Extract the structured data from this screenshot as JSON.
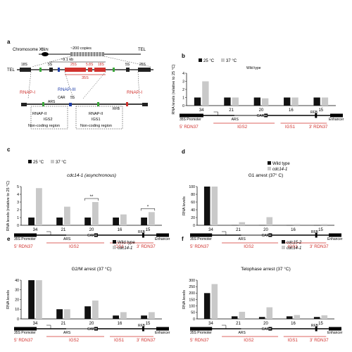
{
  "colors": {
    "dark": "#111111",
    "light": "#c9c9c9",
    "red": "#d0312d",
    "blue": "#1f3ea8",
    "green": "#3aa83a"
  },
  "panel_a": {
    "label": "a",
    "chromosome": "Chromosome XII",
    "cen": "CEN",
    "tel_right": "TEL",
    "copies": "~200 copies",
    "unit_size": "~9.1 kb",
    "tel_left": "TEL",
    "s18": "18S",
    "s5": "5S",
    "s25": "25S",
    "s58": "5.8S",
    "s18b": "18S",
    "s5b": "5S",
    "s25b": "25S",
    "s35": "35S",
    "rnap1_left": "RNAP-I",
    "rnap3": "RNAP-III",
    "rnap1_right": "RNAP-I",
    "ars": "ARS",
    "car": "CAR",
    "s5c": "5S",
    "rfb": "RFB",
    "rnap2_left": "RNAP-II",
    "rnap2_right": "RNAP-II",
    "igs2": "IGS2",
    "igs1": "IGS1",
    "ncr_left": "Non-coding region",
    "ncr_right": "Non-coding region"
  },
  "chart_data": [
    {
      "panel": "b",
      "type": "bar",
      "title": "",
      "ylabel": "RNA levels (relative to 25 °C)",
      "ylim": [
        0,
        4
      ],
      "yticks": [
        "0",
        "1",
        "2",
        "3",
        "4"
      ],
      "categories": [
        "34",
        "21",
        "20",
        "16",
        "15"
      ],
      "series": [
        {
          "name": "25 °C",
          "values": [
            1,
            1,
            1,
            1,
            1
          ]
        },
        {
          "name": "37 °C",
          "values": [
            3,
            1,
            0.9,
            1,
            1
          ]
        }
      ],
      "annotation": "Wild type"
    },
    {
      "panel": "c",
      "type": "bar",
      "title": "cdc14-1 (asynchronous)",
      "ylabel": "RNA levels (relative to 25 °C)",
      "ylim": [
        0,
        5
      ],
      "yticks": [
        "0",
        "1",
        "2",
        "3",
        "4",
        "5"
      ],
      "categories": [
        "34",
        "21",
        "20",
        "16",
        "15"
      ],
      "series": [
        {
          "name": "25 °C",
          "values": [
            1,
            1,
            1,
            1,
            1
          ]
        },
        {
          "name": "37 °C",
          "values": [
            4.8,
            2.4,
            3,
            1.4,
            1.7
          ]
        }
      ],
      "significance": [
        "**",
        "*"
      ]
    },
    {
      "panel": "d",
      "type": "bar",
      "title": "G1 arrest (37° C)",
      "ylabel": "RNA levels",
      "ylim": [
        0,
        100
      ],
      "yticks": [
        "0",
        "20",
        "40",
        "60",
        "80",
        "100"
      ],
      "categories": [
        "34",
        "21",
        "20",
        "16",
        "15"
      ],
      "series": [
        {
          "name": "Wild type",
          "values": [
            100,
            0.5,
            0.5,
            0.3,
            0.3
          ]
        },
        {
          "name": "cdc14-1",
          "values": [
            100,
            8,
            21,
            3,
            3
          ]
        }
      ]
    },
    {
      "panel": "e",
      "type": "bar",
      "title": "G2/M arrest (37 °C)",
      "ylabel": "RNA levels",
      "ylim": [
        0,
        40
      ],
      "yticks": [
        "0",
        "10",
        "20",
        "30",
        "40"
      ],
      "categories": [
        "34",
        "21",
        "20",
        "16",
        "15"
      ],
      "series": [
        {
          "name": "Wild type",
          "values": [
            40,
            10,
            13,
            3.5,
            3.5
          ]
        },
        {
          "name": "cdc14-1",
          "values": [
            40,
            10,
            19,
            7,
            7
          ]
        }
      ]
    },
    {
      "panel": "f",
      "type": "bar",
      "title": "Telophase arrest (37 °C)",
      "ylabel": "RNA levels",
      "ylim": [
        0,
        300
      ],
      "yticks": [
        "0",
        "50",
        "100",
        "150",
        "200",
        "250",
        "300"
      ],
      "categories": [
        "34",
        "21",
        "20",
        "16",
        "15"
      ],
      "series": [
        {
          "name": "cdc15-2",
          "values": [
            200,
            20,
            15,
            20,
            15
          ]
        },
        {
          "name": "cdc14-1",
          "values": [
            270,
            55,
            90,
            30,
            28
          ]
        }
      ]
    }
  ],
  "schematic": {
    "promoter": "35S Promoter",
    "ars": "ARS",
    "car": "CAR",
    "rfb": "RFB",
    "enhancer": "Enhancer",
    "r5": "5' RDN37",
    "igs2": "IGS2",
    "igs1": "IGS1",
    "r3": "3' RDN37"
  }
}
